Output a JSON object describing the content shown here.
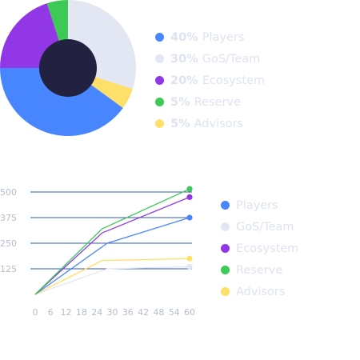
{
  "chart_data": [
    {
      "type": "pie",
      "style": "donut",
      "title": "",
      "slices": [
        {
          "label": "Players",
          "value": 40,
          "pct_label": "40%",
          "color": "#4886ff"
        },
        {
          "label": "GoS/Team",
          "value": 30,
          "pct_label": "30%",
          "color": "#e2e7f3"
        },
        {
          "label": "Ecosystem",
          "value": 20,
          "pct_label": "20%",
          "color": "#9137e6"
        },
        {
          "label": "Reserve",
          "value": 5,
          "pct_label": "5%",
          "color": "#3dc955"
        },
        {
          "label": "Advisors",
          "value": 5,
          "pct_label": "5%",
          "color": "#fde06a"
        }
      ],
      "center_color": "#222140",
      "legend_position": "right"
    },
    {
      "type": "line",
      "title": "",
      "xlabel": "",
      "ylabel": "",
      "x_ticks": [
        0,
        6,
        12,
        18,
        24,
        30,
        36,
        42,
        48,
        54,
        60
      ],
      "y_ticks": [
        125,
        250,
        375,
        500
      ],
      "xlim": [
        0,
        60
      ],
      "ylim": [
        0,
        520
      ],
      "grid": "horizontal",
      "grid_color": "#2e58b8",
      "legend_position": "right",
      "series": [
        {
          "name": "Players",
          "color": "#4886ff",
          "x": [
            0,
            28,
            60
          ],
          "y": [
            0,
            250,
            375
          ]
        },
        {
          "name": "GoS/Team",
          "color": "#e2e7f3",
          "x": [
            0,
            28,
            60
          ],
          "y": [
            0,
            125,
            135
          ]
        },
        {
          "name": "Ecosystem",
          "color": "#9137e6",
          "x": [
            0,
            26,
            60
          ],
          "y": [
            0,
            300,
            475
          ]
        },
        {
          "name": "Reserve",
          "color": "#3dc955",
          "x": [
            0,
            26,
            60
          ],
          "y": [
            0,
            320,
            515
          ]
        },
        {
          "name": "Advisors",
          "color": "#fde06a",
          "x": [
            0,
            26,
            60
          ],
          "y": [
            0,
            165,
            175
          ]
        }
      ]
    }
  ]
}
